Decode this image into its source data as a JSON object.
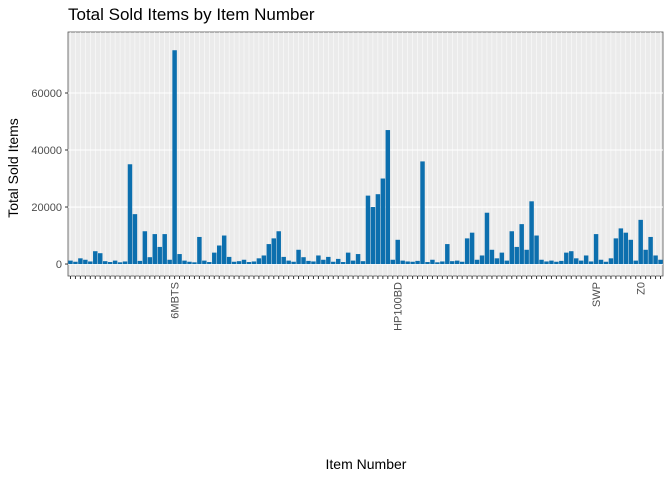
{
  "chart_data": {
    "type": "bar",
    "title": "Total Sold Items by Item Number",
    "x_label": "Item Number",
    "y_label": "Total Sold Items",
    "categories": [
      null,
      null,
      null,
      null,
      null,
      null,
      null,
      null,
      null,
      null,
      null,
      null,
      null,
      null,
      null,
      null,
      null,
      null,
      null,
      null,
      null,
      "6MBTS",
      null,
      null,
      null,
      null,
      null,
      null,
      null,
      null,
      null,
      null,
      null,
      null,
      null,
      null,
      null,
      null,
      null,
      null,
      null,
      null,
      null,
      null,
      null,
      null,
      null,
      null,
      null,
      null,
      null,
      null,
      null,
      null,
      null,
      null,
      null,
      null,
      null,
      null,
      null,
      null,
      null,
      null,
      null,
      null,
      "HP100BD",
      null,
      null,
      null,
      null,
      null,
      null,
      null,
      null,
      null,
      null,
      null,
      null,
      null,
      null,
      null,
      null,
      null,
      null,
      null,
      null,
      null,
      null,
      null,
      null,
      null,
      null,
      null,
      null,
      null,
      null,
      null,
      null,
      null,
      null,
      null,
      null,
      null,
      null,
      null,
      "SWP",
      null,
      null,
      null,
      null,
      null,
      null,
      null,
      null,
      "Z0",
      null,
      null,
      null,
      null
    ],
    "values": [
      1200,
      800,
      2000,
      1500,
      900,
      4500,
      3800,
      1000,
      700,
      1200,
      600,
      900,
      35000,
      17500,
      1100,
      11500,
      2400,
      10500,
      6000,
      10500,
      1500,
      75000,
      3500,
      1200,
      800,
      600,
      9500,
      1200,
      700,
      4000,
      6500,
      10000,
      2500,
      800,
      1000,
      1500,
      700,
      900,
      2000,
      3000,
      7000,
      9000,
      11500,
      2500,
      1200,
      800,
      5000,
      2400,
      1100,
      900,
      3000,
      1500,
      2500,
      800,
      1800,
      700,
      4000,
      1200,
      3500,
      1000,
      24000,
      20000,
      24500,
      30000,
      47000,
      1500,
      8500,
      1200,
      900,
      800,
      1100,
      36000,
      700,
      1500,
      600,
      900,
      7000,
      1000,
      1200,
      800,
      9000,
      11000,
      1500,
      3000,
      18000,
      5000,
      2000,
      4000,
      1200,
      11500,
      6000,
      14000,
      5000,
      22000,
      10000,
      1500,
      900,
      1200,
      800,
      1100,
      4000,
      4500,
      2000,
      1200,
      3000,
      900,
      10500,
      1500,
      800,
      2000,
      9000,
      12500,
      11000,
      8500,
      1200,
      15500,
      5000,
      9500,
      3000,
      1500
    ],
    "color": "#0c6fae",
    "ylim": [
      -4200,
      81400
    ],
    "yticks": [
      0,
      20000,
      40000,
      60000
    ],
    "grid": true
  }
}
